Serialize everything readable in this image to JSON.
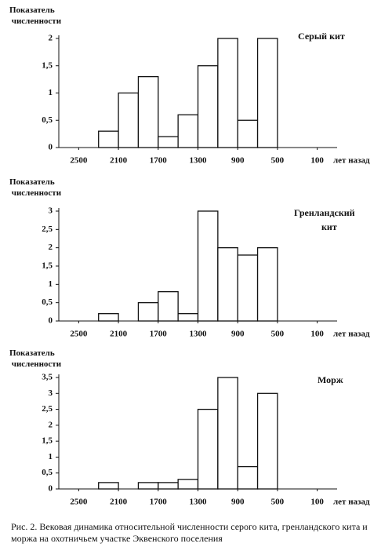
{
  "chart_data": [
    {
      "type": "histogram",
      "ylabel": "Показатель численности",
      "annotation": [
        "Серый кит"
      ],
      "bins": [
        2300,
        2100,
        1900,
        1700,
        1500,
        1300,
        1100,
        900,
        700,
        500
      ],
      "values": [
        0.3,
        1.0,
        1.3,
        0.2,
        0.6,
        1.5,
        2.0,
        0.5,
        2.0
      ],
      "color": "#ffffff",
      "xlim": [
        2700,
        -100
      ],
      "xticks": [
        2500,
        2100,
        1700,
        1300,
        900,
        500,
        100
      ],
      "xlabel": "лет назад",
      "ylim": [
        0,
        2
      ],
      "yticks": [
        0,
        {
          "value": 0.5,
          "label": "0,5"
        },
        1,
        {
          "value": 1.5,
          "label": "1,5"
        },
        2
      ]
    },
    {
      "type": "histogram",
      "ylabel": "Показатель численности",
      "annotation": [
        "Гренландский",
        "кит"
      ],
      "bins": [
        2300,
        2100,
        1900,
        1700,
        1500,
        1300,
        1100,
        900,
        700,
        500
      ],
      "values": [
        0.2,
        0,
        0.5,
        0.8,
        0.2,
        3.0,
        2.0,
        1.8,
        2.0
      ],
      "color": "#ffffff",
      "xlim": [
        2700,
        -100
      ],
      "xticks": [
        2500,
        2100,
        1700,
        1300,
        900,
        500,
        100
      ],
      "xlabel": "лет назад",
      "ylim": [
        0,
        3
      ],
      "yticks": [
        0,
        {
          "value": 0.5,
          "label": "0,5"
        },
        1,
        {
          "value": 1.5,
          "label": "1,5"
        },
        2,
        {
          "value": 2.5,
          "label": "2,5"
        },
        3
      ]
    },
    {
      "type": "histogram",
      "ylabel": "Показатель численности",
      "annotation": [
        "Морж"
      ],
      "bins": [
        2300,
        2100,
        1900,
        1700,
        1500,
        1300,
        1100,
        900,
        700,
        500
      ],
      "values": [
        0.2,
        0,
        0.2,
        0.2,
        0.3,
        2.5,
        3.5,
        0.7,
        3.0
      ],
      "color": "#ffffff",
      "xlim": [
        2700,
        -100
      ],
      "xticks": [
        2500,
        2100,
        1700,
        1300,
        900,
        500,
        100
      ],
      "xlabel": "лет назад",
      "ylim": [
        0,
        3.5
      ],
      "yticks": [
        0,
        {
          "value": 0.5,
          "label": "0,5"
        },
        1,
        {
          "value": 1.5,
          "label": "1,5"
        },
        2,
        {
          "value": 2.5,
          "label": "2,5"
        },
        3,
        {
          "value": 3.5,
          "label": "3,5"
        }
      ]
    }
  ],
  "caption": "Рис. 2. Вековая динамика относительной численности серого кита, гренландского кита и моржа на охотничьем участке Эквенского поселения"
}
